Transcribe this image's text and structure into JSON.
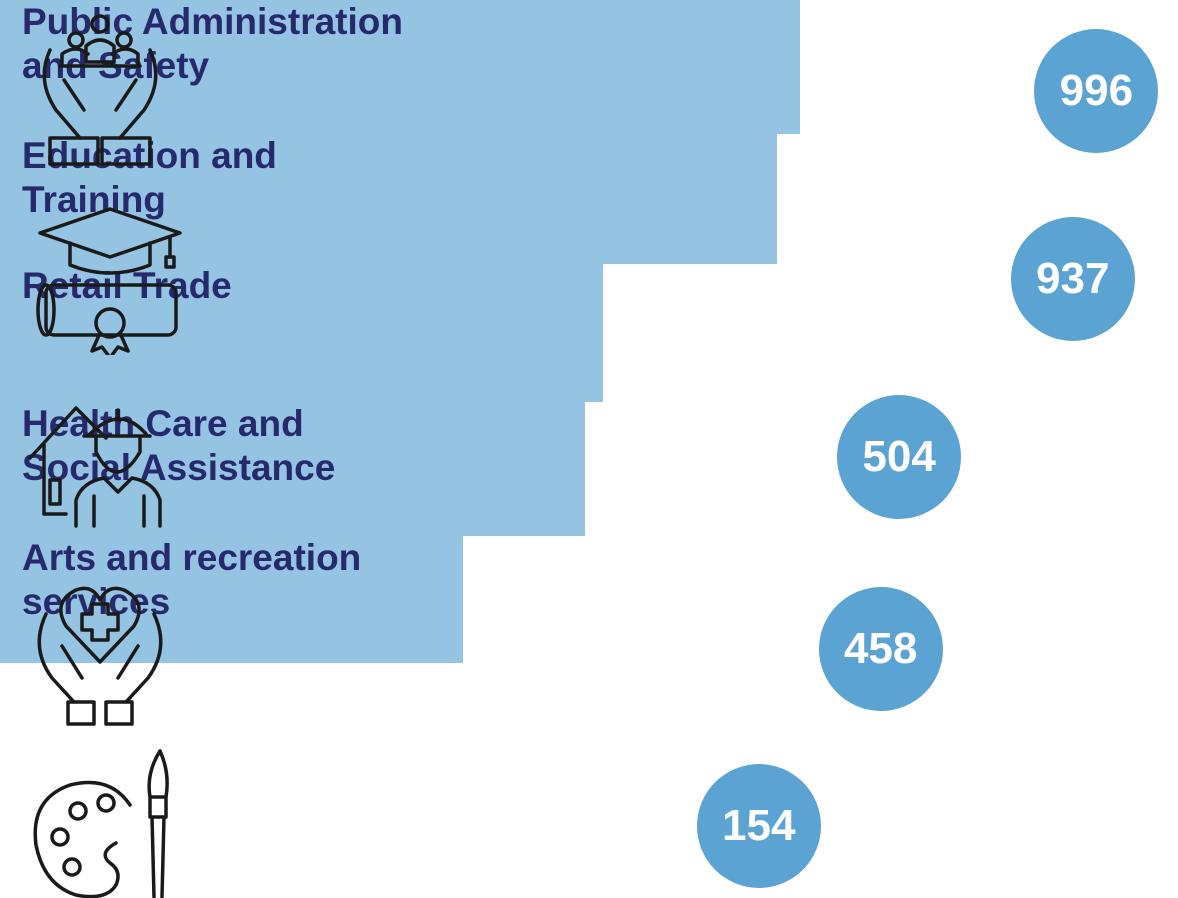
{
  "chart_data": {
    "type": "bar",
    "orientation": "horizontal",
    "categories": [
      "Public Administration\nand Safety",
      "Education and\nTraining",
      "Retail Trade",
      "Health Care and\nSocial Assistance",
      "Arts and recreation\nservices"
    ],
    "values": [
      996,
      937,
      504,
      458,
      154
    ],
    "color": "#95c3e2",
    "label_color": "#5ba3d3",
    "xlim": [
      -1000,
      1000
    ]
  }
}
